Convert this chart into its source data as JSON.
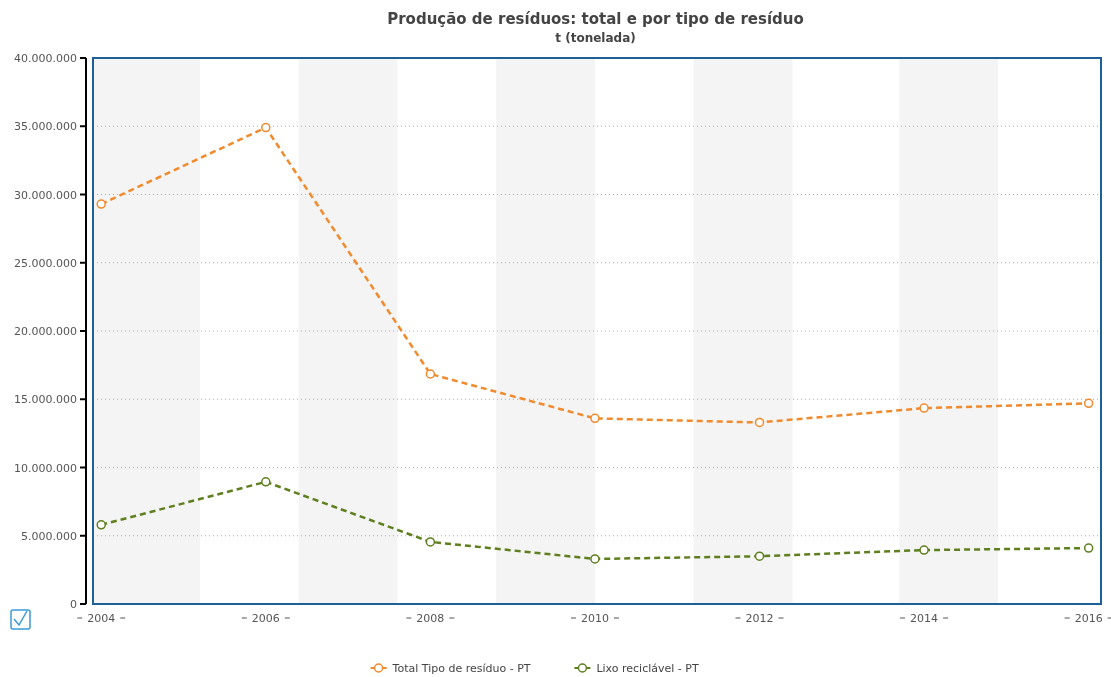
{
  "chart_data": {
    "type": "line",
    "title": "Produção de resíduos: total e por tipo de resíduo",
    "subtitle": "t (tonelada)",
    "x": [
      2004,
      2006,
      2008,
      2010,
      2012,
      2014,
      2016
    ],
    "series": [
      {
        "name": "Total Tipo de resíduo - PT",
        "color": "#f08a2c",
        "values": [
          29300000,
          34900000,
          16850000,
          13600000,
          13300000,
          14350000,
          14700000
        ]
      },
      {
        "name": "Lixo reciclável - PT",
        "color": "#5e7f1e",
        "values": [
          5800000,
          8950000,
          4550000,
          3300000,
          3500000,
          3950000,
          4100000
        ]
      }
    ],
    "xlim": [
      2003.9,
      2016.15
    ],
    "xticks": [
      2004,
      2006,
      2008,
      2010,
      2012,
      2014,
      2016
    ],
    "ylim": [
      0,
      40000000
    ],
    "yticks": [
      {
        "value": 0,
        "label": "0"
      },
      {
        "value": 5000000,
        "label": "5.000.000"
      },
      {
        "value": 10000000,
        "label": "10.000.000"
      },
      {
        "value": 15000000,
        "label": "15.000.000"
      },
      {
        "value": 20000000,
        "label": "20.000.000"
      },
      {
        "value": 25000000,
        "label": "25.000.000"
      },
      {
        "value": 30000000,
        "label": "30.000.000"
      },
      {
        "value": 35000000,
        "label": "35.000.000"
      },
      {
        "value": 40000000,
        "label": "40.000.000"
      }
    ],
    "bands": [
      {
        "axis": "x",
        "from": 2003.9,
        "to": 2005.2,
        "color": "#f4f4f4"
      },
      {
        "axis": "x",
        "from": 2006.4,
        "to": 2007.6,
        "color": "#f4f4f4"
      },
      {
        "axis": "x",
        "from": 2008.8,
        "to": 2010.0,
        "color": "#f4f4f4"
      },
      {
        "axis": "x",
        "from": 2011.2,
        "to": 2012.4,
        "color": "#f4f4f4"
      },
      {
        "axis": "x",
        "from": 2013.7,
        "to": 2014.9,
        "color": "#f4f4f4"
      }
    ],
    "grid": "y",
    "legend": "bottom",
    "marker": "circle",
    "line_style": "dashed"
  }
}
